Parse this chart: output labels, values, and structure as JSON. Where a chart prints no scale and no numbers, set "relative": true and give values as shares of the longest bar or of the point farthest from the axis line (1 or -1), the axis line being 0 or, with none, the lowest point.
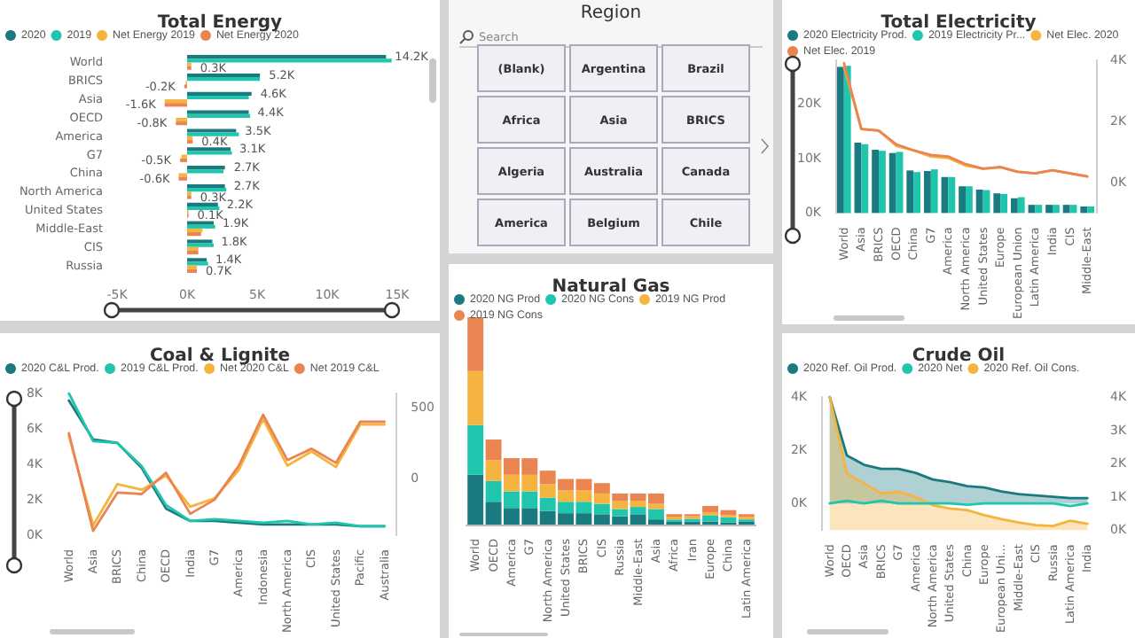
{
  "chart_data": [
    {
      "type": "bar",
      "orientation": "horizontal",
      "title": "Total Energy",
      "legend": "top left",
      "categories": [
        "World",
        "BRICS",
        "Asia",
        "OECD",
        "America",
        "G7",
        "China",
        "North America",
        "United States",
        "Middle-East",
        "CIS",
        "Russia"
      ],
      "xlim": [
        -5000,
        15000
      ],
      "xticks": [
        {
          "value": -5000,
          "label": "-5K"
        },
        {
          "value": 0,
          "label": "0K"
        },
        {
          "value": 5000,
          "label": "5K"
        },
        {
          "value": 10000,
          "label": "10K"
        },
        {
          "value": 15000,
          "label": "15K"
        }
      ],
      "series": [
        {
          "name": "2020",
          "color": "#1b7a80",
          "values": [
            14200,
            5200,
            4600,
            4400,
            3500,
            3100,
            2700,
            2700,
            2200,
            1900,
            1800,
            1400
          ],
          "value_labels": [
            "14.2K",
            "5.2K",
            "4.6K",
            "4.4K",
            "3.5K",
            "3.1K",
            "2.7K",
            "2.7K",
            "2.2K",
            "1.9K",
            "1.8K",
            "1.4K"
          ]
        },
        {
          "name": "2019",
          "color": "#20c5ad",
          "values": [
            14600,
            5200,
            4400,
            4500,
            3700,
            3200,
            2600,
            2800,
            2300,
            2000,
            1900,
            1500
          ]
        },
        {
          "name": "Net Energy 2019",
          "color": "#f4b43f",
          "values": [
            300,
            -100,
            -1600,
            -800,
            400,
            -400,
            -600,
            300,
            100,
            1100,
            800,
            700
          ]
        },
        {
          "name": "Net Energy 2020",
          "color": "#ea8450",
          "values": [
            300,
            -200,
            -1600,
            -800,
            400,
            -500,
            -600,
            300,
            100,
            1000,
            800,
            700
          ],
          "value_labels": [
            "0.3K",
            "-0.2K",
            "-1.6K",
            "-0.8K",
            "0.4K",
            "-0.5K",
            "-0.6K",
            "0.3K",
            "0.1K",
            null,
            null,
            "0.7K"
          ]
        }
      ]
    },
    {
      "type": "other",
      "title": "Region",
      "annotations": [
        "Search"
      ],
      "categories": [
        "(Blank)",
        "Argentina",
        "Brazil",
        "Africa",
        "Asia",
        "BRICS",
        "Algeria",
        "Australia",
        "Canada",
        "America",
        "Belgium",
        "Chile"
      ]
    },
    {
      "type": "bar",
      "title": "Total Electricity",
      "legend": "top left",
      "marker": "none",
      "categories": [
        "World",
        "Asia",
        "BRICS",
        "OECD",
        "China",
        "G7",
        "America",
        "North America",
        "United States",
        "Europe",
        "European Union",
        "Latin America",
        "India",
        "CIS",
        "Middle-East"
      ],
      "ylim": [
        0,
        28000
      ],
      "yticks": [
        {
          "value": 0,
          "label": "0K"
        },
        {
          "value": 10000,
          "label": "10K"
        },
        {
          "value": 20000,
          "label": "20K"
        }
      ],
      "y2lim": [
        -1000,
        4000
      ],
      "y2ticks": [
        {
          "value": 0,
          "label": "0K"
        },
        {
          "value": 2000,
          "label": "2K"
        },
        {
          "value": 4000,
          "label": "4K"
        }
      ],
      "series": [
        {
          "name": "2020 Electricity Prod.",
          "color": "#1b7a80",
          "values": [
            26800,
            12900,
            11600,
            11000,
            7800,
            7700,
            6600,
            4900,
            4300,
            3600,
            2700,
            1500,
            1500,
            1500,
            1200
          ]
        },
        {
          "name": "2019 Electricity Pr...",
          "color": "#20c5ad",
          "values": [
            27000,
            12600,
            11400,
            11200,
            7500,
            8000,
            6600,
            4900,
            4200,
            3500,
            2900,
            1500,
            1500,
            1500,
            1200
          ]
        },
        {
          "name": "Net Elec. 2020",
          "type": "line",
          "axis": "y2",
          "color": "#f4b43f",
          "values": [
            3800,
            1750,
            1700,
            1200,
            1050,
            850,
            800,
            550,
            450,
            500,
            350,
            300,
            400,
            300,
            200
          ]
        },
        {
          "name": "Net Elec. 2019",
          "type": "line",
          "axis": "y2",
          "color": "#ea8450",
          "values": [
            3900,
            1750,
            1700,
            1250,
            1050,
            900,
            850,
            600,
            450,
            500,
            350,
            300,
            400,
            300,
            200
          ]
        }
      ]
    },
    {
      "type": "line",
      "title": "Coal & Lignite",
      "legend": "top left",
      "marker": "none",
      "categories": [
        "World",
        "Asia",
        "BRICS",
        "China",
        "OECD",
        "India",
        "G7",
        "America",
        "Indonesia",
        "North America",
        "CIS",
        "United States",
        "Pacific",
        "Australia"
      ],
      "ylim": [
        0,
        8000
      ],
      "yticks": [
        {
          "value": 0,
          "label": "0K"
        },
        {
          "value": 2000,
          "label": "2K"
        },
        {
          "value": 4000,
          "label": "4K"
        },
        {
          "value": 6000,
          "label": "6K"
        },
        {
          "value": 8000,
          "label": "8K"
        }
      ],
      "y2lim": [
        -400,
        600
      ],
      "y2ticks": [
        0,
        500
      ],
      "series": [
        {
          "name": "2020 C&L Prod.",
          "color": "#1b7a80",
          "values": [
            7600,
            5400,
            5200,
            3800,
            1500,
            800,
            800,
            700,
            600,
            600,
            600,
            600,
            500,
            500
          ]
        },
        {
          "name": "2019 C&L Prod.",
          "color": "#20c5ad",
          "values": [
            8000,
            5300,
            5200,
            3900,
            1700,
            800,
            900,
            800,
            700,
            800,
            600,
            700,
            500,
            500
          ]
        },
        {
          "name": "Net 2020 C&L",
          "axis": "y2",
          "color": "#f4b43f",
          "values": [
            300,
            -330,
            -40,
            -80,
            20,
            -200,
            -140,
            60,
            420,
            90,
            190,
            80,
            380,
            380
          ]
        },
        {
          "name": "Net 2019 C&L",
          "axis": "y2",
          "color": "#ea8450",
          "values": [
            320,
            -370,
            -100,
            -110,
            40,
            -250,
            -150,
            90,
            450,
            130,
            210,
            110,
            400,
            400
          ]
        }
      ]
    },
    {
      "type": "bar",
      "stacked": true,
      "relative": true,
      "title": "Natural Gas",
      "legend": "top left",
      "categories": [
        "World",
        "OECD",
        "America",
        "G7",
        "North America",
        "United States",
        "BRICS",
        "CIS",
        "Russia",
        "Middle-East",
        "Asia",
        "Africa",
        "Iran",
        "Europe",
        "China",
        "Latin America"
      ],
      "series": [
        {
          "name": "2020 NG Prod",
          "color": "#1b7a80",
          "values": [
            0.24,
            0.11,
            0.08,
            0.08,
            0.065,
            0.055,
            0.055,
            0.05,
            0.04,
            0.05,
            0.025,
            0.013,
            0.015,
            0.015,
            0.01,
            0.013
          ]
        },
        {
          "name": "2020 NG Cons",
          "color": "#20c5ad",
          "values": [
            0.24,
            0.1,
            0.08,
            0.08,
            0.065,
            0.055,
            0.055,
            0.05,
            0.035,
            0.035,
            0.05,
            0.012,
            0.013,
            0.03,
            0.025,
            0.012
          ]
        },
        {
          "name": "2019 NG Prod",
          "color": "#f4b43f",
          "values": [
            0.26,
            0.1,
            0.08,
            0.08,
            0.065,
            0.055,
            0.055,
            0.05,
            0.04,
            0.03,
            0.025,
            0.013,
            0.012,
            0.015,
            0.01,
            0.013
          ]
        },
        {
          "name": "2019 NG Cons",
          "color": "#ea8450",
          "values": [
            0.26,
            0.1,
            0.08,
            0.08,
            0.065,
            0.055,
            0.055,
            0.05,
            0.035,
            0.035,
            0.05,
            0.012,
            0.01,
            0.03,
            0.025,
            0.012
          ]
        }
      ]
    },
    {
      "type": "area",
      "title": "Crude Oil",
      "legend": "top left",
      "marker": "none",
      "categories": [
        "World",
        "OECD",
        "Asia",
        "BRICS",
        "G7",
        "America",
        "North America",
        "United States",
        "China",
        "Europe",
        "European Uni...",
        "Middle-East",
        "CIS",
        "Russia",
        "Latin America",
        "India"
      ],
      "ylim": [
        -1000,
        4000
      ],
      "yticks": [
        {
          "value": 0,
          "label": "0K"
        },
        {
          "value": 2000,
          "label": "2K"
        },
        {
          "value": 4000,
          "label": "4K"
        }
      ],
      "y2lim": [
        0,
        4000
      ],
      "y2ticks": [
        {
          "value": 0,
          "label": "0K"
        },
        {
          "value": 1000,
          "label": "1K"
        },
        {
          "value": 2000,
          "label": "2K"
        },
        {
          "value": 3000,
          "label": "3K"
        },
        {
          "value": 4000,
          "label": "4K"
        }
      ],
      "series": [
        {
          "name": "2020 Ref. Oil Prod.",
          "color": "#1b7a80",
          "values": [
            4000,
            1800,
            1450,
            1300,
            1300,
            1150,
            900,
            800,
            650,
            600,
            450,
            350,
            300,
            250,
            200,
            200
          ]
        },
        {
          "name": "2020 Net",
          "type": "line",
          "color": "#20c5ad",
          "values": [
            0,
            100,
            0,
            100,
            0,
            0,
            0,
            0,
            -50,
            0,
            0,
            0,
            0,
            0,
            -100,
            0
          ]
        },
        {
          "name": "2020 Ref. Oil Cons.",
          "axis": "y2",
          "color": "#f4b43f",
          "values": [
            4000,
            1700,
            1400,
            1100,
            1150,
            1000,
            750,
            650,
            600,
            450,
            330,
            230,
            150,
            120,
            280,
            190
          ]
        }
      ]
    }
  ]
}
